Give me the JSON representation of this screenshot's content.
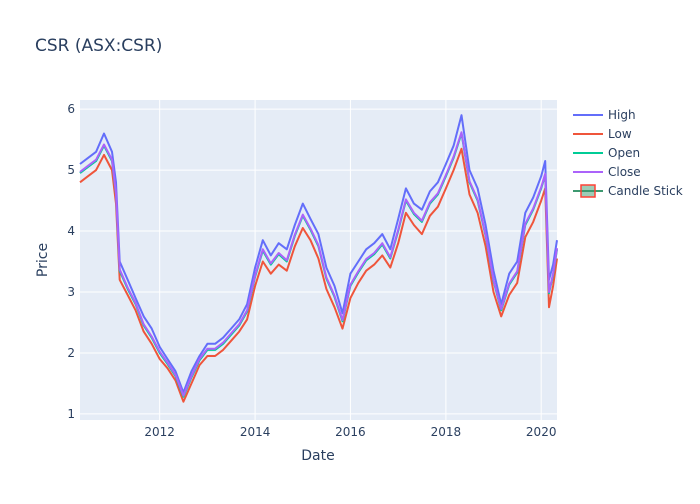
{
  "chart_data": {
    "type": "line",
    "title": "CSR (ASX:CSR)",
    "xlabel": "Date",
    "ylabel": "Price",
    "xlim": [
      "2010-05-01",
      "2020-05-01"
    ],
    "ylim": [
      0.9,
      6.15
    ],
    "x_ticks": [
      "2012",
      "2014",
      "2016",
      "2018",
      "2020"
    ],
    "y_ticks": [
      "1",
      "2",
      "3",
      "4",
      "5",
      "6"
    ],
    "legend_position": "right",
    "grid": true,
    "colors": {
      "plot_bg": "#e5ecf6",
      "grid": "#ffffff",
      "axis_text": "#2a3f5f",
      "high": "#636efa",
      "low": "#ef553b",
      "open": "#00cc96",
      "close": "#ab63fa",
      "candle_up": "#3d9970",
      "candle_down": "#ff4136"
    },
    "dates": [
      "2010-05",
      "2010-07",
      "2010-09",
      "2010-11",
      "2011-01",
      "2011-02",
      "2011-03",
      "2011-05",
      "2011-07",
      "2011-09",
      "2011-11",
      "2012-01",
      "2012-03",
      "2012-05",
      "2012-07",
      "2012-09",
      "2012-11",
      "2013-01",
      "2013-03",
      "2013-05",
      "2013-07",
      "2013-09",
      "2013-11",
      "2014-01",
      "2014-03",
      "2014-05",
      "2014-07",
      "2014-09",
      "2014-11",
      "2015-01",
      "2015-03",
      "2015-05",
      "2015-07",
      "2015-09",
      "2015-11",
      "2016-01",
      "2016-03",
      "2016-05",
      "2016-07",
      "2016-09",
      "2016-11",
      "2017-01",
      "2017-03",
      "2017-05",
      "2017-07",
      "2017-09",
      "2017-11",
      "2018-01",
      "2018-03",
      "2018-05",
      "2018-07",
      "2018-09",
      "2018-11",
      "2019-01",
      "2019-03",
      "2019-05",
      "2019-07",
      "2019-09",
      "2019-11",
      "2020-01",
      "2020-02",
      "2020-03",
      "2020-04",
      "2020-05"
    ],
    "series": [
      {
        "name": "High",
        "values": [
          5.1,
          5.2,
          5.3,
          5.6,
          5.3,
          4.8,
          3.5,
          3.2,
          2.9,
          2.6,
          2.4,
          2.1,
          1.9,
          1.7,
          1.35,
          1.7,
          1.95,
          2.15,
          2.15,
          2.25,
          2.4,
          2.55,
          2.8,
          3.4,
          3.85,
          3.6,
          3.8,
          3.7,
          4.1,
          4.45,
          4.2,
          3.95,
          3.4,
          3.1,
          2.65,
          3.3,
          3.5,
          3.7,
          3.8,
          3.95,
          3.7,
          4.2,
          4.7,
          4.45,
          4.35,
          4.65,
          4.8,
          5.1,
          5.4,
          5.9,
          5.0,
          4.7,
          4.1,
          3.35,
          2.8,
          3.3,
          3.5,
          4.3,
          4.55,
          4.9,
          5.15,
          3.2,
          3.45,
          3.85
        ]
      },
      {
        "name": "Low",
        "values": [
          4.8,
          4.9,
          5.0,
          5.25,
          5.0,
          4.45,
          3.2,
          2.95,
          2.7,
          2.35,
          2.15,
          1.9,
          1.75,
          1.55,
          1.2,
          1.5,
          1.8,
          1.95,
          1.95,
          2.05,
          2.2,
          2.35,
          2.55,
          3.1,
          3.5,
          3.3,
          3.45,
          3.35,
          3.75,
          4.05,
          3.85,
          3.55,
          3.05,
          2.75,
          2.4,
          2.9,
          3.15,
          3.35,
          3.45,
          3.6,
          3.4,
          3.8,
          4.3,
          4.1,
          3.95,
          4.25,
          4.4,
          4.7,
          5.0,
          5.35,
          4.6,
          4.3,
          3.75,
          3.0,
          2.6,
          2.95,
          3.15,
          3.9,
          4.15,
          4.5,
          4.7,
          2.75,
          3.1,
          3.55
        ]
      },
      {
        "name": "Open",
        "values": [
          4.95,
          5.05,
          5.15,
          5.4,
          5.15,
          4.6,
          3.35,
          3.05,
          2.8,
          2.45,
          2.25,
          2.0,
          1.82,
          1.62,
          1.28,
          1.6,
          1.88,
          2.05,
          2.05,
          2.15,
          2.3,
          2.45,
          2.68,
          3.25,
          3.68,
          3.45,
          3.62,
          3.5,
          3.92,
          4.25,
          4.02,
          3.75,
          3.22,
          2.92,
          2.52,
          3.1,
          3.32,
          3.52,
          3.62,
          3.78,
          3.55,
          4.0,
          4.5,
          4.28,
          4.15,
          4.45,
          4.6,
          4.9,
          5.2,
          5.6,
          4.8,
          4.5,
          3.92,
          3.18,
          2.7,
          3.12,
          3.32,
          4.1,
          4.35,
          4.7,
          4.92,
          2.98,
          3.28,
          3.7
        ]
      },
      {
        "name": "Close",
        "values": [
          4.97,
          5.07,
          5.17,
          5.42,
          5.17,
          4.62,
          3.37,
          3.07,
          2.82,
          2.47,
          2.27,
          2.02,
          1.84,
          1.64,
          1.3,
          1.62,
          1.9,
          2.07,
          2.07,
          2.17,
          2.32,
          2.47,
          2.7,
          3.27,
          3.7,
          3.47,
          3.64,
          3.52,
          3.94,
          4.27,
          4.04,
          3.77,
          3.24,
          2.94,
          2.54,
          3.12,
          3.34,
          3.54,
          3.64,
          3.8,
          3.57,
          4.02,
          4.52,
          4.3,
          4.17,
          4.47,
          4.62,
          4.92,
          5.22,
          5.62,
          4.82,
          4.52,
          3.94,
          3.2,
          2.72,
          3.14,
          3.34,
          4.12,
          4.37,
          4.72,
          4.94,
          3.0,
          3.3,
          3.72
        ]
      }
    ],
    "legend": [
      {
        "name": "High",
        "kind": "line",
        "color": "#636efa"
      },
      {
        "name": "Low",
        "kind": "line",
        "color": "#ef553b"
      },
      {
        "name": "Open",
        "kind": "line",
        "color": "#00cc96"
      },
      {
        "name": "Close",
        "kind": "line",
        "color": "#ab63fa"
      },
      {
        "name": "Candle Stick",
        "kind": "candle",
        "color": "#3d9970"
      }
    ]
  }
}
